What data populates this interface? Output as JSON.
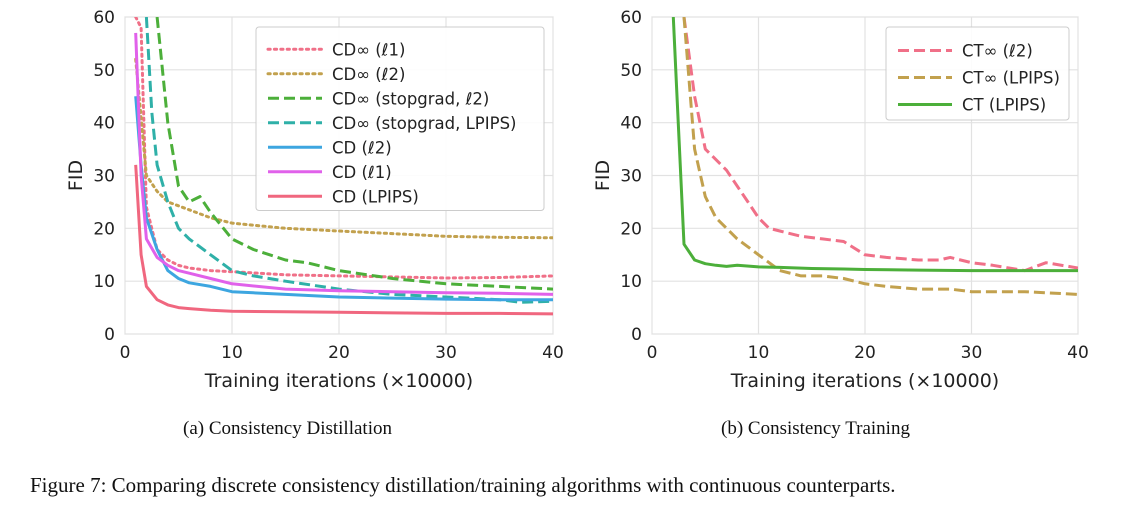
{
  "figure_caption": "Figure 7: Comparing discrete consistency distillation/training algorithms with continuous counterparts.",
  "chart_data": [
    {
      "type": "line",
      "subcaption": "(a) Consistency Distillation",
      "xlabel": "Training iterations (×10000)",
      "ylabel": "FID",
      "xlim": [
        0,
        40
      ],
      "ylim": [
        0,
        60
      ],
      "xticks": [
        0,
        10,
        20,
        30,
        40
      ],
      "yticks": [
        0,
        10,
        20,
        30,
        40,
        50,
        60
      ],
      "grid": true,
      "legend_position": "top-right",
      "series": [
        {
          "name": "CD∞ (ℓ1)",
          "color": "#f07088",
          "dash": "dots",
          "x": [
            1,
            1.5,
            2,
            3,
            4,
            5,
            6,
            8,
            10,
            15,
            20,
            25,
            30,
            35,
            40
          ],
          "y": [
            60,
            58,
            24,
            16,
            14,
            13,
            12.5,
            12,
            11.8,
            11.2,
            11,
            10.8,
            10.6,
            10.7,
            11
          ]
        },
        {
          "name": "CD∞ (ℓ2)",
          "color": "#c2a14e",
          "dash": "dots",
          "x": [
            1,
            2,
            3,
            4,
            6,
            8,
            10,
            15,
            20,
            25,
            30,
            35,
            40
          ],
          "y": [
            52,
            30,
            27,
            25,
            23.5,
            22,
            21,
            20,
            19.5,
            19,
            18.5,
            18.3,
            18.2
          ]
        },
        {
          "name": "CD∞ (stopgrad, ℓ2)",
          "color": "#4caf3a",
          "dash": "dashed",
          "x": [
            3,
            4,
            5,
            6,
            7,
            8,
            10,
            12,
            15,
            17,
            20,
            25,
            30,
            35,
            40
          ],
          "y": [
            60,
            40,
            28,
            25,
            26,
            23,
            18,
            16,
            14,
            13.5,
            12,
            10.5,
            9.5,
            9,
            8.5
          ]
        },
        {
          "name": "CD∞ (stopgrad, LPIPS)",
          "color": "#2fb0a8",
          "dash": "dashed",
          "x": [
            2,
            2.5,
            3,
            4,
            5,
            6,
            8,
            10,
            12,
            15,
            20,
            25,
            30,
            35,
            37,
            40
          ],
          "y": [
            60,
            42,
            32,
            25,
            20,
            18,
            15,
            12,
            11,
            10,
            8.5,
            7.5,
            7,
            6.5,
            6,
            6.2
          ]
        },
        {
          "name": "CD (ℓ2)",
          "color": "#3da6e0",
          "dash": "solid",
          "x": [
            1,
            1.5,
            2,
            3,
            4,
            5,
            6,
            8,
            10,
            12,
            15,
            20,
            25,
            30,
            35,
            40
          ],
          "y": [
            45,
            32,
            22,
            16,
            12,
            10.5,
            9.7,
            9,
            8,
            7.8,
            7.5,
            7,
            6.8,
            6.6,
            6.5,
            6.5
          ]
        },
        {
          "name": "CD (ℓ1)",
          "color": "#e061ea",
          "dash": "solid",
          "x": [
            1,
            1.5,
            2,
            3,
            4,
            5,
            6,
            8,
            10,
            15,
            20,
            25,
            30,
            35,
            40
          ],
          "y": [
            57,
            30,
            18,
            14.5,
            13,
            12,
            11.5,
            10.5,
            9.5,
            8.5,
            8.2,
            8,
            7.8,
            7.7,
            7.5
          ]
        },
        {
          "name": "CD (LPIPS)",
          "color": "#f0677f",
          "dash": "solid",
          "x": [
            1,
            1.5,
            2,
            3,
            4,
            5,
            6,
            8,
            10,
            15,
            20,
            25,
            30,
            35,
            40
          ],
          "y": [
            32,
            15,
            9,
            6.5,
            5.5,
            5,
            4.8,
            4.5,
            4.3,
            4.2,
            4.1,
            4,
            3.9,
            3.9,
            3.8
          ]
        }
      ]
    },
    {
      "type": "line",
      "subcaption": "(b) Consistency Training",
      "xlabel": "Training iterations (×10000)",
      "ylabel": "FID",
      "xlim": [
        0,
        40
      ],
      "ylim": [
        0,
        60
      ],
      "xticks": [
        0,
        10,
        20,
        30,
        40
      ],
      "yticks": [
        0,
        10,
        20,
        30,
        40,
        50,
        60
      ],
      "grid": true,
      "legend_position": "top-right",
      "series": [
        {
          "name": "CT∞ (ℓ2)",
          "color": "#f07088",
          "dash": "dashed",
          "x": [
            3,
            4,
            5,
            6,
            7,
            8,
            9,
            10,
            11,
            12,
            14,
            16,
            18,
            20,
            22,
            25,
            27,
            28,
            30,
            32,
            35,
            37,
            40
          ],
          "y": [
            60,
            45,
            35,
            33,
            31,
            28,
            25,
            22,
            20,
            19.5,
            18.5,
            18,
            17.5,
            15,
            14.5,
            14,
            14,
            14.5,
            13.5,
            13,
            12,
            13.5,
            12.5
          ]
        },
        {
          "name": "CT∞ (LPIPS)",
          "color": "#c2a14e",
          "dash": "dashed",
          "x": [
            3,
            4,
            5,
            6,
            7,
            8,
            9,
            10,
            12,
            14,
            16,
            18,
            20,
            22,
            25,
            28,
            30,
            35,
            40
          ],
          "y": [
            60,
            35,
            26,
            22,
            20,
            18,
            16.5,
            15,
            12,
            11,
            11,
            10.5,
            9.5,
            9,
            8.5,
            8.5,
            8,
            8,
            7.5
          ]
        },
        {
          "name": "CT (LPIPS)",
          "color": "#4caf3a",
          "dash": "solid",
          "x": [
            2,
            2.3,
            3,
            4,
            5,
            6,
            7,
            8,
            10,
            12,
            15,
            18,
            20,
            25,
            30,
            35,
            40
          ],
          "y": [
            60,
            47,
            17,
            14,
            13.3,
            13,
            12.8,
            13,
            12.7,
            12.6,
            12.4,
            12.3,
            12.2,
            12.1,
            12,
            12,
            12
          ]
        }
      ]
    }
  ]
}
